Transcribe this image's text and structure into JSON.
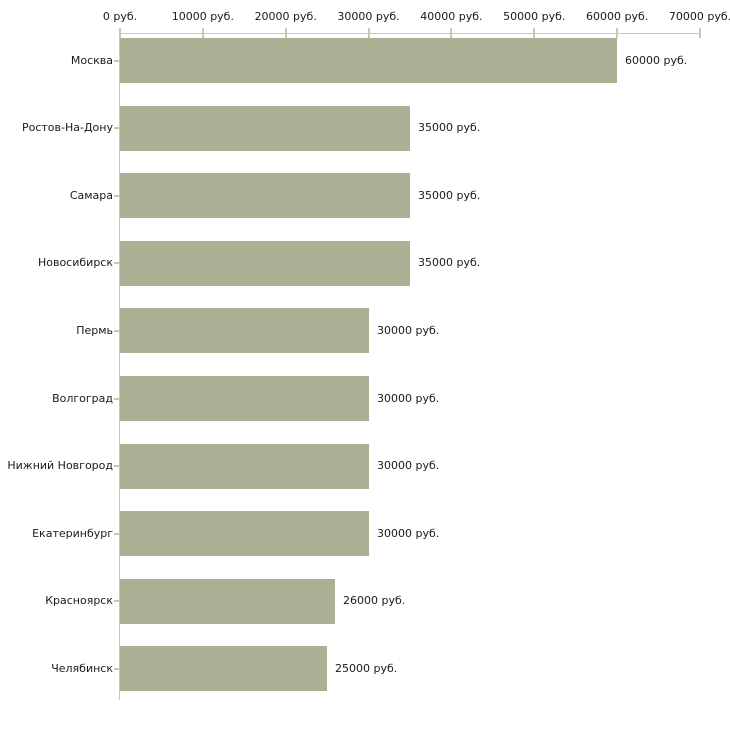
{
  "chart_data": {
    "type": "bar",
    "orientation": "horizontal",
    "title": "",
    "categories": [
      "Москва",
      "Ростов-На-Дону",
      "Самара",
      "Новосибирск",
      "Пермь",
      "Волгоград",
      "Нижний Новгород",
      "Екатеринбург",
      "Красноярск",
      "Челябинск"
    ],
    "values": [
      60000,
      35000,
      35000,
      35000,
      30000,
      30000,
      30000,
      30000,
      26000,
      25000
    ],
    "value_labels": [
      "60000 руб.",
      "35000 руб.",
      "35000 руб.",
      "35000 руб.",
      "30000 руб.",
      "30000 руб.",
      "30000 руб.",
      "30000 руб.",
      "26000 руб.",
      "25000 руб."
    ],
    "x_axis": {
      "position": "top",
      "min": 0,
      "max": 70000,
      "tick_interval": 10000,
      "tick_labels": [
        "0 руб.",
        "10000 руб.",
        "20000 руб.",
        "30000 руб.",
        "40000 руб.",
        "50000 руб.",
        "60000 руб.",
        "70000 руб."
      ]
    },
    "grid": false,
    "legend": false,
    "colors": {
      "bar": "#aab094",
      "axis_line": "#c6c6c6",
      "tick": "#c9caa0",
      "text": "#1a1a1a",
      "background": "#ffffff"
    }
  }
}
